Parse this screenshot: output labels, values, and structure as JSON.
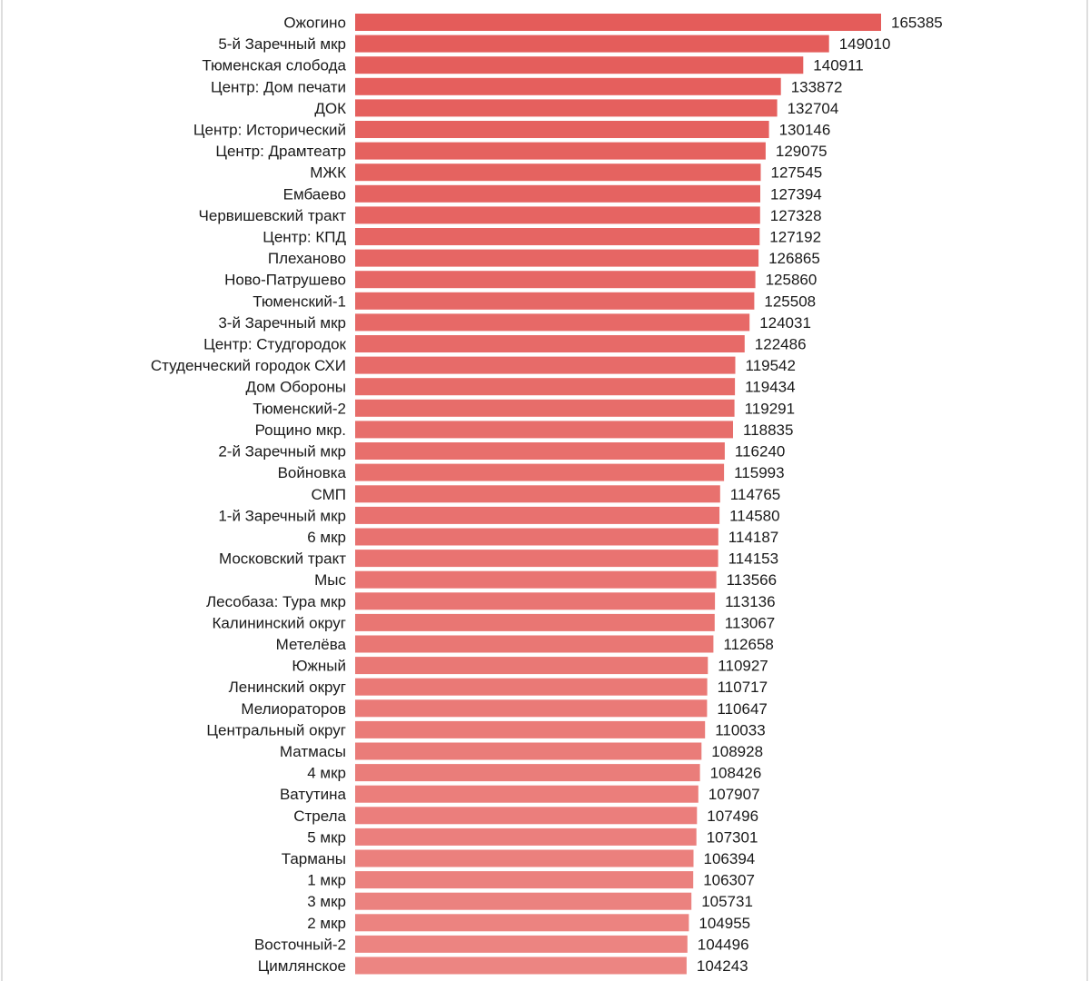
{
  "colors": {
    "bar_top": "#e45c5a",
    "bar_bottom": "#ec8582",
    "text": "#1a1a1a",
    "frame": "#bdbdbd"
  },
  "chart_data": {
    "type": "bar",
    "orientation": "horizontal",
    "title": "",
    "xlabel": "",
    "ylabel": "",
    "xlim": [
      0,
      165385
    ],
    "grid": false,
    "show_data_labels": true,
    "categories": [
      "Ожогино",
      "5-й Заречный мкр",
      "Тюменская слобода",
      "Центр: Дом печати",
      "ДОК",
      "Центр: Исторический",
      "Центр: Драмтеатр",
      "МЖК",
      "Ембаево",
      "Червишевский тракт",
      "Центр: КПД",
      "Плеханово",
      "Ново-Патрушево",
      "Тюменский-1",
      "3-й Заречный мкр",
      "Центр: Студгородок",
      "Студенческий городок СХИ",
      "Дом Обороны",
      "Тюменский-2",
      "Рощино мкр.",
      "2-й Заречный мкр",
      "Войновка",
      "СМП",
      "1-й Заречный мкр",
      "6 мкр",
      "Московский тракт",
      "Мыс",
      "Лесобаза: Тура мкр",
      "Калининский округ",
      "Метелёва",
      "Южный",
      "Ленинский округ",
      "Мелиораторов",
      "Центральный округ",
      "Матмасы",
      "4 мкр",
      "Ватутина",
      "Стрела",
      "5 мкр",
      "Тарманы",
      "1 мкр",
      "3 мкр",
      "2 мкр",
      "Восточный-2",
      "Цимлянское"
    ],
    "values": [
      165385,
      149010,
      140911,
      133872,
      132704,
      130146,
      129075,
      127545,
      127394,
      127328,
      127192,
      126865,
      125860,
      125508,
      124031,
      122486,
      119542,
      119434,
      119291,
      118835,
      116240,
      115993,
      114765,
      114580,
      114187,
      114153,
      113566,
      113136,
      113067,
      112658,
      110927,
      110717,
      110647,
      110033,
      108928,
      108426,
      107907,
      107496,
      107301,
      106394,
      106307,
      105731,
      104955,
      104496,
      104243
    ]
  }
}
